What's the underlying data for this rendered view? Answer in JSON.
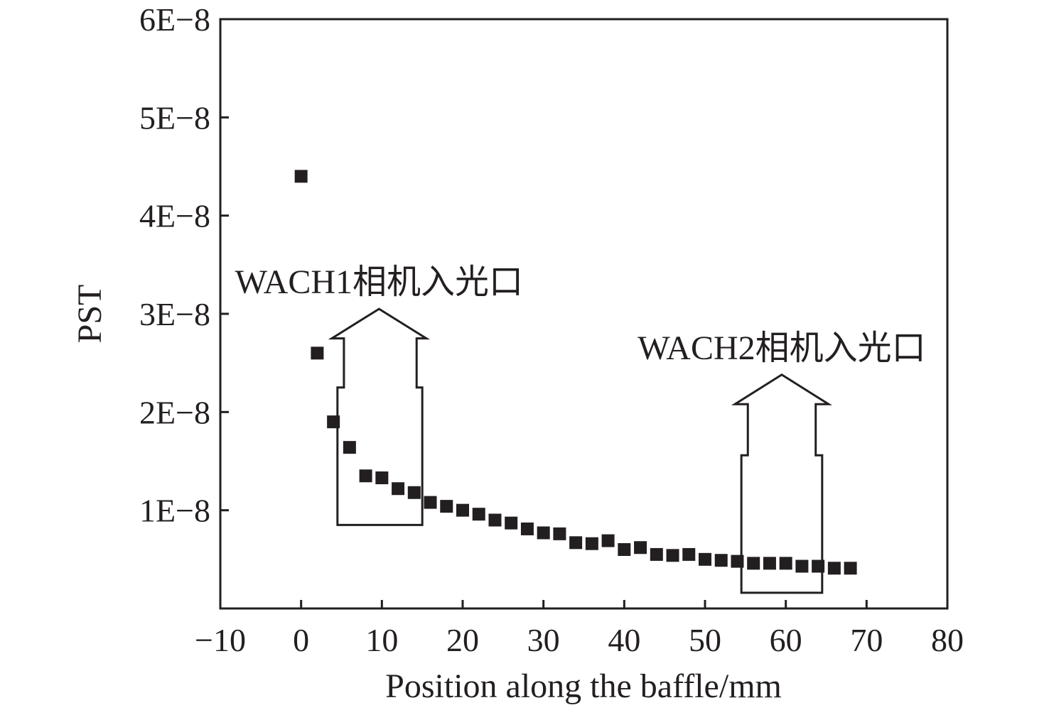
{
  "chart_data": {
    "type": "scatter",
    "xlabel": "Position along the baffle/mm",
    "ylabel": "PST",
    "xlim": [
      -10,
      80
    ],
    "ylim": [
      0,
      6e-08
    ],
    "x_ticks": [
      -10,
      0,
      10,
      20,
      30,
      40,
      50,
      60,
      70,
      80
    ],
    "x_tick_labels": [
      "−10",
      "0",
      "10",
      "20",
      "30",
      "40",
      "50",
      "60",
      "70",
      "80"
    ],
    "y_ticks": [
      1e-08,
      2e-08,
      3e-08,
      4e-08,
      5e-08,
      6e-08
    ],
    "y_tick_labels": [
      "1E−8",
      "2E−8",
      "3E−8",
      "4E−8",
      "5E−8",
      "6E−8"
    ],
    "grid": false,
    "marker": "square",
    "color": "#231f20",
    "series": [
      {
        "x": [
          0,
          2,
          4,
          6,
          8,
          10,
          12,
          14,
          16,
          18,
          20,
          22,
          24,
          26,
          28,
          30,
          32,
          34,
          36,
          38,
          40,
          42,
          44,
          46,
          48,
          50,
          52,
          54,
          56,
          58,
          60,
          62,
          64,
          66,
          68
        ],
        "y": [
          4.4e-08,
          2.6e-08,
          1.9e-08,
          1.64e-08,
          1.35e-08,
          1.33e-08,
          1.22e-08,
          1.18e-08,
          1.08e-08,
          1.04e-08,
          1e-08,
          9.6e-09,
          9e-09,
          8.7e-09,
          8.1e-09,
          7.7e-09,
          7.6e-09,
          6.7e-09,
          6.6e-09,
          6.9e-09,
          6e-09,
          6.2e-09,
          5.5e-09,
          5.4e-09,
          5.5e-09,
          5e-09,
          4.9e-09,
          4.8e-09,
          4.6e-09,
          4.6e-09,
          4.6e-09,
          4.3e-09,
          4.3e-09,
          4.1e-09,
          4.1e-09
        ]
      }
    ],
    "annotations": [
      {
        "text": "WACH1相机入光口",
        "arrow_x_range": [
          4.5,
          15
        ],
        "arrow_bottom": 8.5e-09,
        "arrow_top": 3.05e-08,
        "shaft_top": 2.25e-08,
        "head_base": 2.75e-08,
        "head_x_range": [
          3.8,
          15.5
        ],
        "neck_x_range": [
          5.3,
          14.3
        ]
      },
      {
        "text": "WACH2相机入光口",
        "arrow_x_range": [
          54.5,
          64.5
        ],
        "arrow_bottom": 1.6e-09,
        "arrow_top": 2.38e-08,
        "shaft_top": 1.56e-08,
        "head_base": 2.08e-08,
        "head_x_range": [
          53.7,
          65.3
        ],
        "neck_x_range": [
          55.3,
          63.7
        ]
      }
    ]
  }
}
